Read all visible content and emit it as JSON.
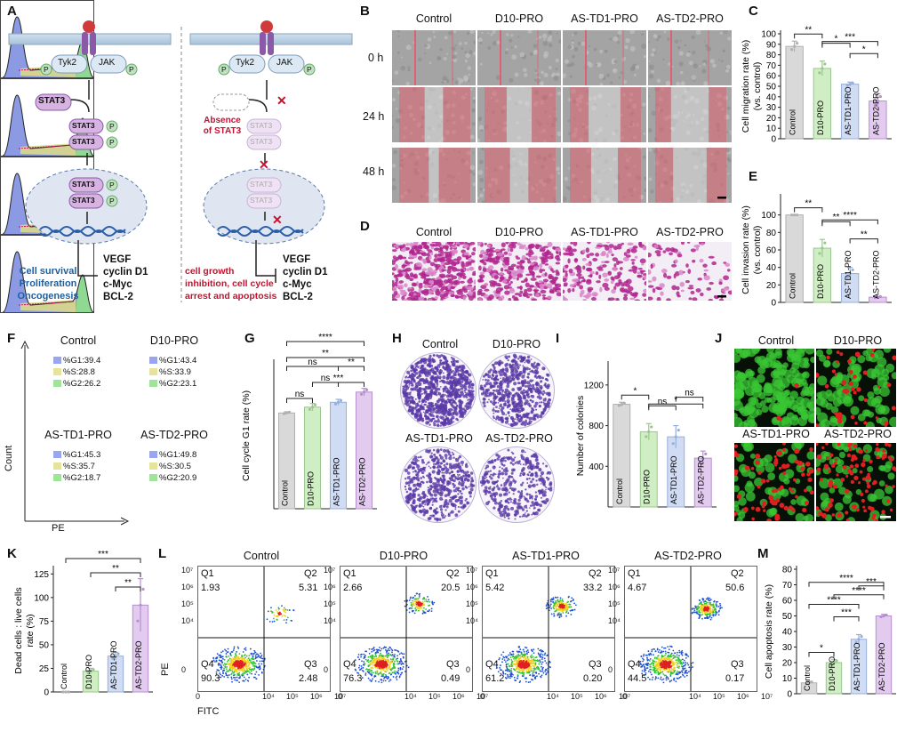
{
  "panels": {
    "A": "A",
    "B": "B",
    "C": "C",
    "D": "D",
    "E": "E",
    "F": "F",
    "G": "G",
    "H": "H",
    "I": "I",
    "J": "J",
    "K": "K",
    "L": "L",
    "M": "M"
  },
  "colors": {
    "control": "#d9d9d9",
    "d10": "#cfeec4",
    "td1": "#cfdcf3",
    "td2": "#e3cbf0",
    "stat3": "#d7b3e2",
    "necrosis": "#e06070",
    "live": "#39c734",
    "dead": "#e02020",
    "text_red": "#c8102e",
    "text_blue": "#1f5f9e"
  },
  "groups": [
    "Control",
    "D10-PRO",
    "AS-TD1-PRO",
    "AS-TD2-PRO"
  ],
  "panelA": {
    "left": {
      "tyk2": "Tyk2",
      "jak": "JAK",
      "p": "P",
      "stat3": "STAT3",
      "genes": [
        "VEGF",
        "cyclin D1",
        "c-Myc",
        "BCL-2"
      ],
      "outcomes": [
        "Cell survival",
        "Proliferation",
        "Oncogenesis"
      ]
    },
    "right": {
      "tyk2": "Tyk2",
      "jak": "JAK",
      "p": "P",
      "absence": [
        "Absence",
        "of STAT3"
      ],
      "stat3": "STAT3",
      "genes": [
        "VEGF",
        "cyclin D1",
        "c-Myc",
        "BCL-2"
      ],
      "outcomes": [
        "cell growth",
        "inhibition,  cell cycle",
        "arrest and apoptosis"
      ]
    }
  },
  "panelB": {
    "rows": [
      "0 h",
      "24 h",
      "48 h"
    ]
  },
  "panelF": {
    "ylabel": "Count",
    "xlabel": "PE",
    "stats": [
      {
        "g1": "%G1:39.4",
        "s": "%S:28.8",
        "g2": "%G2:26.2"
      },
      {
        "g1": "%G1:43.4",
        "s": "%S:33.9",
        "g2": "%G2:23.1"
      },
      {
        "g1": "%G1:45.3",
        "s": "%S:35.7",
        "g2": "%G2:18.7"
      },
      {
        "g1": "%G1:49.8",
        "s": "%S:30.5",
        "g2": "%G2:20.9"
      }
    ]
  },
  "panelL": {
    "xlabel": "FITC",
    "ylabel": "PE",
    "ticks_x": [
      "0",
      "10⁴",
      "10⁵",
      "10⁶",
      "10⁷"
    ],
    "ticks_y": [
      "10⁷",
      "10⁶",
      "10⁵",
      "10⁴",
      "0"
    ],
    "quads": [
      {
        "q1": "Q1",
        "q1v": "1.93",
        "q2": "Q2",
        "q2v": "5.31",
        "q3": "Q3",
        "q3v": "2.48",
        "q4": "Q4",
        "q4v": "90.3"
      },
      {
        "q1": "Q1",
        "q1v": "2.66",
        "q2": "Q2",
        "q2v": "20.5",
        "q3": "Q3",
        "q3v": "0.49",
        "q4": "Q4",
        "q4v": "76.3"
      },
      {
        "q1": "Q1",
        "q1v": "5.42",
        "q2": "Q2",
        "q2v": "33.2",
        "q3": "Q3",
        "q3v": "0.20",
        "q4": "Q4",
        "q4v": "61.2"
      },
      {
        "q1": "Q1",
        "q1v": "4.67",
        "q2": "Q2",
        "q2v": "50.6",
        "q3": "Q3",
        "q3v": "0.17",
        "q4": "Q4",
        "q4v": "44.5"
      }
    ]
  },
  "chart_data": [
    {
      "id": "C",
      "type": "bar",
      "categories": [
        "Control",
        "D10-PRO",
        "AS-TD1-PRO",
        "AS-TD2-PRO"
      ],
      "values": [
        88,
        67,
        52,
        36
      ],
      "errors": [
        5,
        7,
        2,
        7
      ],
      "ylabel": "Cell migration rate (%)",
      "ylabel2": "(vs. control)",
      "ylim": [
        0,
        100
      ],
      "yticks": [
        "0",
        "10",
        "20",
        "30",
        "40",
        "50",
        "60",
        "70",
        "80",
        "90",
        "100"
      ],
      "sig": [
        {
          "a": 0,
          "b": 1,
          "label": "**"
        },
        {
          "a": 1,
          "b": 2,
          "label": "*"
        },
        {
          "a": 2,
          "b": 3,
          "label": "*"
        },
        {
          "a": 1,
          "b": 3,
          "label": "***"
        }
      ]
    },
    {
      "id": "E",
      "type": "bar",
      "categories": [
        "Control",
        "D10-PRO",
        "AS-TD1-PRO",
        "AS-TD2-PRO"
      ],
      "values": [
        100,
        62,
        33,
        6
      ],
      "errors": [
        0,
        10,
        7,
        1
      ],
      "ylabel": "Cell invasion rate (%)",
      "ylabel2": "(vs. control)",
      "ylim": [
        0,
        120
      ],
      "yticks": [
        "0",
        "20",
        "40",
        "60",
        "80",
        "100"
      ],
      "sig": [
        {
          "a": 0,
          "b": 1,
          "label": "**"
        },
        {
          "a": 1,
          "b": 2,
          "label": "**"
        },
        {
          "a": 2,
          "b": 3,
          "label": "**"
        },
        {
          "a": 1,
          "b": 3,
          "label": "****"
        }
      ]
    },
    {
      "id": "G",
      "type": "bar",
      "categories": [
        "Control",
        "D10-PRO",
        "AS-TD1-PRO",
        "AS-TD2-PRO"
      ],
      "values": [
        39.4,
        41.8,
        43.8,
        48.0
      ],
      "errors": [
        0.5,
        1.5,
        1.2,
        1.5
      ],
      "ylabel": "Cell cycle G1 rate (%)",
      "ylim": [
        0,
        60
      ],
      "yticks": [],
      "sig": [
        {
          "a": 0,
          "b": 1,
          "label": "ns"
        },
        {
          "a": 1,
          "b": 2,
          "label": "ns"
        },
        {
          "a": 2,
          "b": 3,
          "label": "**"
        },
        {
          "a": 1,
          "b": 3,
          "label": "***"
        },
        {
          "a": 0,
          "b": 2,
          "label": "ns"
        },
        {
          "a": 0,
          "b": 3,
          "label": "**"
        },
        {
          "a": 0,
          "b": 3,
          "label": "****"
        }
      ]
    },
    {
      "id": "I",
      "type": "bar",
      "categories": [
        "Control",
        "D10-PRO",
        "AS-TD1-PRO",
        "AS-TD2-PRO"
      ],
      "values": [
        1010,
        740,
        690,
        480
      ],
      "errors": [
        20,
        80,
        110,
        70
      ],
      "ylabel": "Number of colonies",
      "ylim": [
        0,
        1400
      ],
      "yticks": [
        "400",
        "800",
        "1200"
      ],
      "sig": [
        {
          "a": 0,
          "b": 1,
          "label": "*"
        },
        {
          "a": 1,
          "b": 2,
          "label": "ns"
        },
        {
          "a": 2,
          "b": 3,
          "label": "ns"
        },
        {
          "a": 1,
          "b": 3,
          "label": "*"
        }
      ]
    },
    {
      "id": "K",
      "type": "bar",
      "categories": [
        "Control",
        "D10-PRO",
        "AS-TD1-PRO",
        "AS-TD2-PRO"
      ],
      "values": [
        0,
        22,
        38,
        92
      ],
      "errors": [
        0,
        3,
        4,
        28
      ],
      "ylabel": "Dead cells : live cells",
      "ylabel2": "rate (%)",
      "ylim": [
        0,
        130
      ],
      "yticks": [
        "0",
        "25",
        "50",
        "75",
        "100",
        "125"
      ],
      "sig": [
        {
          "a": 2,
          "b": 3,
          "label": "**"
        },
        {
          "a": 1,
          "b": 3,
          "label": "**"
        },
        {
          "a": 0,
          "b": 3,
          "label": "***"
        }
      ]
    },
    {
      "id": "M",
      "type": "bar",
      "categories": [
        "Control",
        "D10-PRO",
        "AS-TD1-PRO",
        "AS-TD2-PRO"
      ],
      "values": [
        7,
        20,
        35,
        50
      ],
      "errors": [
        1,
        2,
        3,
        1
      ],
      "ylabel": "Cell apoptosis rate (%)",
      "ylim": [
        0,
        80
      ],
      "yticks": [
        "0",
        "10",
        "20",
        "30",
        "40",
        "50",
        "60",
        "70",
        "80"
      ],
      "sig": [
        {
          "a": 0,
          "b": 1,
          "label": "*"
        },
        {
          "a": 1,
          "b": 2,
          "label": "***"
        },
        {
          "a": 2,
          "b": 3,
          "label": "***"
        },
        {
          "a": 1,
          "b": 3,
          "label": "****"
        },
        {
          "a": 0,
          "b": 2,
          "label": "****"
        },
        {
          "a": 0,
          "b": 3,
          "label": "****"
        }
      ]
    }
  ]
}
